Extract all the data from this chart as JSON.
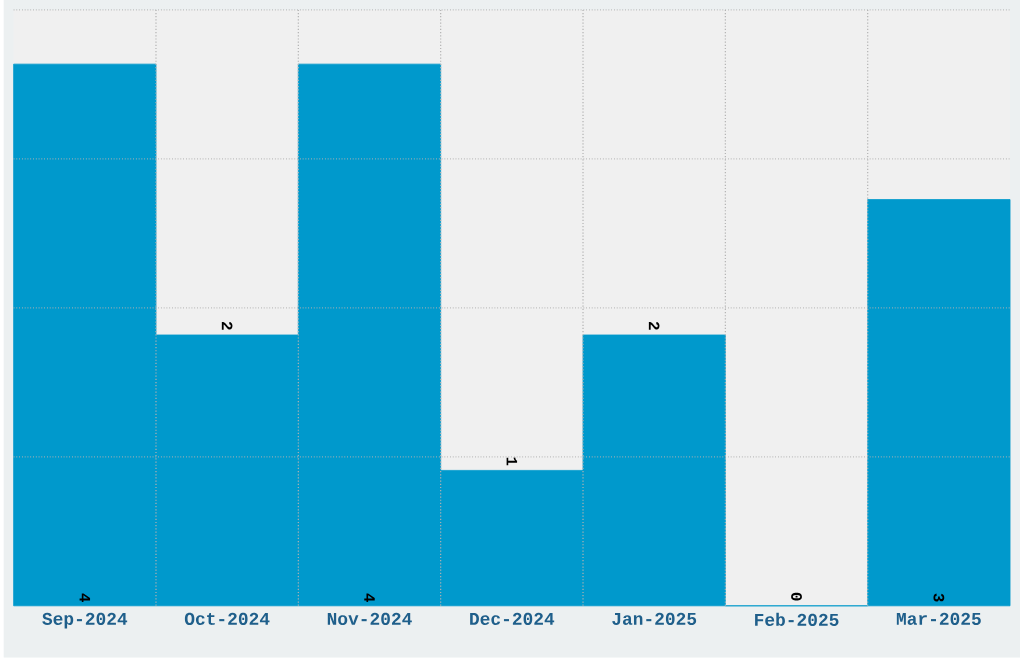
{
  "chart_data": {
    "type": "bar",
    "categories": [
      "Sep-2024",
      "Oct-2024",
      "Nov-2024",
      "Dec-2024",
      "Jan-2025",
      "Feb-2025",
      "Mar-2025"
    ],
    "values": [
      4,
      2,
      4,
      1,
      2,
      0,
      3
    ],
    "color": "#0099cc",
    "ylim": [
      0,
      4.4
    ],
    "yticks": [
      {
        "value": 1.1,
        "label": null
      },
      {
        "value": 2.2,
        "label": null
      },
      {
        "value": 3.3,
        "label": null
      },
      {
        "value": 4.4,
        "label": null
      }
    ],
    "tick_labels": "x",
    "grid": true,
    "data_labels": true
  }
}
